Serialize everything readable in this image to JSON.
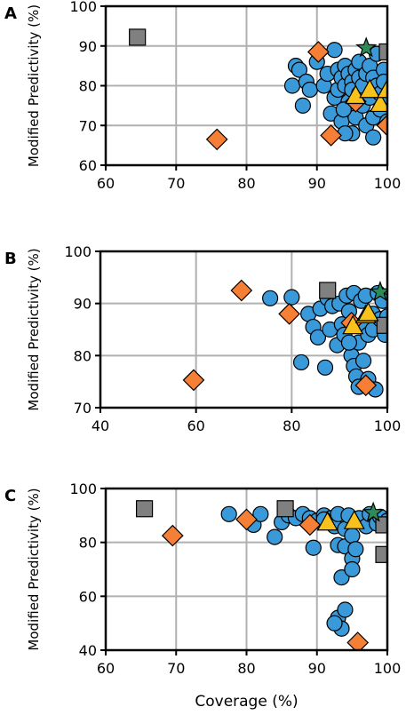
{
  "colors": {
    "circle": "#3a9ad9",
    "diamond": "#f47f35",
    "square": "#808080",
    "triangle": "#f9c11b",
    "star": "#2e8b57",
    "grid": "#b0b0b0"
  },
  "chart_data": [
    {
      "type": "scatter",
      "panel": "A",
      "xlabel": "",
      "ylabel": "Modified Predictivity (%)",
      "xlim": [
        60,
        100
      ],
      "ylim": [
        60,
        100
      ],
      "xticks": [
        "60",
        "70",
        "80",
        "90",
        "100"
      ],
      "yticks": [
        "60",
        "70",
        "80",
        "90",
        "100"
      ],
      "grid": true,
      "series": [
        {
          "marker": "circle",
          "points": [
            [
              86.5,
              80
            ],
            [
              87,
              85
            ],
            [
              87.5,
              84
            ],
            [
              88,
              75
            ],
            [
              88.5,
              81
            ],
            [
              89,
              79
            ],
            [
              90,
              86
            ],
            [
              91,
              80
            ],
            [
              91.5,
              83
            ],
            [
              92,
              73
            ],
            [
              92.5,
              77
            ],
            [
              93,
              79
            ],
            [
              93,
              84
            ],
            [
              93.5,
              82
            ],
            [
              93.5,
              71
            ],
            [
              94,
              80
            ],
            [
              94,
              85
            ],
            [
              94.5,
              83
            ],
            [
              94.5,
              76
            ],
            [
              95,
              81
            ],
            [
              95,
              79
            ],
            [
              95,
              74
            ],
            [
              95,
              68
            ],
            [
              95.5,
              84
            ],
            [
              95.5,
              72
            ],
            [
              96,
              82
            ],
            [
              96,
              78
            ],
            [
              96,
              86
            ],
            [
              96.5,
              75
            ],
            [
              96.5,
              80
            ],
            [
              97,
              83
            ],
            [
              97,
              70
            ],
            [
              97.5,
              85
            ],
            [
              97.5,
              77
            ],
            [
              98,
              82
            ],
            [
              98,
              72
            ],
            [
              98,
              67
            ],
            [
              98.5,
              80
            ],
            [
              98.5,
              88
            ],
            [
              99,
              78
            ],
            [
              99,
              74
            ],
            [
              99.5,
              84
            ],
            [
              99.5,
              81
            ],
            [
              100,
              77
            ],
            [
              100,
              71
            ],
            [
              92.5,
              89
            ],
            [
              94,
              68
            ],
            [
              93.8,
              74
            ]
          ]
        },
        {
          "marker": "diamond",
          "points": [
            [
              90.2,
              88.5
            ],
            [
              75.8,
              66.5
            ],
            [
              92,
              67.5
            ],
            [
              95.5,
              76
            ],
            [
              100,
              70
            ]
          ]
        },
        {
          "marker": "square",
          "points": [
            [
              64.5,
              92.2
            ],
            [
              100,
              88.5
            ]
          ]
        },
        {
          "marker": "triangle",
          "points": [
            [
              95.5,
              77.5
            ],
            [
              97.5,
              79
            ],
            [
              99,
              75.5
            ],
            [
              100,
              79
            ]
          ]
        },
        {
          "marker": "star",
          "points": [
            [
              97,
              89.5
            ]
          ]
        }
      ]
    },
    {
      "type": "scatter",
      "panel": "B",
      "xlabel": "",
      "ylabel": "Modified Predictivity (%)",
      "xlim": [
        40,
        100
      ],
      "ylim": [
        70,
        100
      ],
      "xticks": [
        "40",
        "60",
        "80",
        "100"
      ],
      "yticks": [
        "70",
        "80",
        "90",
        "100"
      ],
      "grid": true,
      "series": [
        {
          "marker": "circle",
          "points": [
            [
              75.5,
              91
            ],
            [
              80,
              91.2
            ],
            [
              82,
              78.7
            ],
            [
              83.5,
              88
            ],
            [
              84.5,
              85.5
            ],
            [
              85.5,
              83.5
            ],
            [
              86,
              89
            ],
            [
              87,
              77.7
            ],
            [
              87.5,
              91
            ],
            [
              88,
              85
            ],
            [
              88.5,
              89.5
            ],
            [
              89.5,
              82
            ],
            [
              90,
              90
            ],
            [
              90.5,
              86
            ],
            [
              91,
              84
            ],
            [
              91.5,
              91.5
            ],
            [
              92,
              88.5
            ],
            [
              92.5,
              80
            ],
            [
              93,
              78
            ],
            [
              93,
              92
            ],
            [
              93.5,
              76
            ],
            [
              94,
              82.5
            ],
            [
              94.5,
              90.5
            ],
            [
              95,
              79
            ],
            [
              95,
              86
            ],
            [
              95.5,
              91.5
            ],
            [
              96,
              84
            ],
            [
              96,
              75.5
            ],
            [
              97,
              88
            ],
            [
              97,
              85
            ],
            [
              97.5,
              73.5
            ],
            [
              98,
              92
            ],
            [
              98.5,
              87
            ],
            [
              99,
              90.5
            ],
            [
              99.5,
              84
            ],
            [
              100,
              87.5
            ],
            [
              94,
              74
            ],
            [
              92,
              82.5
            ]
          ]
        },
        {
          "marker": "diamond",
          "points": [
            [
              69.5,
              92.5
            ],
            [
              79.5,
              88
            ],
            [
              59.5,
              75.3
            ],
            [
              92.5,
              86.3
            ],
            [
              95.5,
              74.3
            ]
          ]
        },
        {
          "marker": "square",
          "points": [
            [
              87.5,
              92.5
            ],
            [
              99.5,
              85.8
            ]
          ]
        },
        {
          "marker": "triangle",
          "points": [
            [
              92.8,
              85.7
            ],
            [
              95.5,
              87.8
            ],
            [
              96,
              88.2
            ]
          ]
        },
        {
          "marker": "star",
          "points": [
            [
              98.5,
              92.2
            ]
          ]
        }
      ]
    },
    {
      "type": "scatter",
      "panel": "C",
      "xlabel": "Coverage (%)",
      "ylabel": "Modified Predictivity (%)",
      "xlim": [
        60,
        100
      ],
      "ylim": [
        40,
        100
      ],
      "xticks": [
        "60",
        "70",
        "80",
        "90",
        "100"
      ],
      "yticks": [
        "40",
        "60",
        "80",
        "100"
      ],
      "grid": true,
      "series": [
        {
          "marker": "circle",
          "points": [
            [
              77.5,
              90.5
            ],
            [
              81,
              86.5
            ],
            [
              82,
              90.5
            ],
            [
              84,
              82
            ],
            [
              85,
              87.5
            ],
            [
              86,
              90
            ],
            [
              87,
              89
            ],
            [
              88,
              90.5
            ],
            [
              89,
              89
            ],
            [
              89.5,
              78
            ],
            [
              90,
              88
            ],
            [
              91,
              90
            ],
            [
              92,
              89
            ],
            [
              92.5,
              86
            ],
            [
              93,
              90.5
            ],
            [
              93,
              79
            ],
            [
              93.5,
              67
            ],
            [
              94,
              85
            ],
            [
              94,
              78.5
            ],
            [
              94.5,
              90
            ],
            [
              95,
              82.5
            ],
            [
              95,
              74
            ],
            [
              95,
              70
            ],
            [
              95.5,
              77.5
            ],
            [
              96,
              89
            ],
            [
              97,
              86
            ],
            [
              97.5,
              90.5
            ],
            [
              93,
              52
            ],
            [
              93.5,
              48
            ],
            [
              94,
              55
            ],
            [
              92.5,
              50
            ],
            [
              98.5,
              87
            ],
            [
              99,
              89.5
            ],
            [
              100,
              88
            ],
            [
              91,
              88.5
            ]
          ]
        },
        {
          "marker": "diamond",
          "points": [
            [
              69.5,
              82.5
            ],
            [
              80,
              88.5
            ],
            [
              89,
              86.5
            ],
            [
              95.8,
              42.8
            ]
          ]
        },
        {
          "marker": "square",
          "points": [
            [
              65.5,
              92.5
            ],
            [
              85.5,
              92.5
            ],
            [
              99.5,
              86.5
            ],
            [
              99.5,
              75.5
            ]
          ]
        },
        {
          "marker": "triangle",
          "points": [
            [
              91.5,
              87.5
            ],
            [
              95.3,
              88
            ]
          ]
        },
        {
          "marker": "star",
          "points": [
            [
              98,
              91
            ]
          ]
        }
      ]
    }
  ]
}
